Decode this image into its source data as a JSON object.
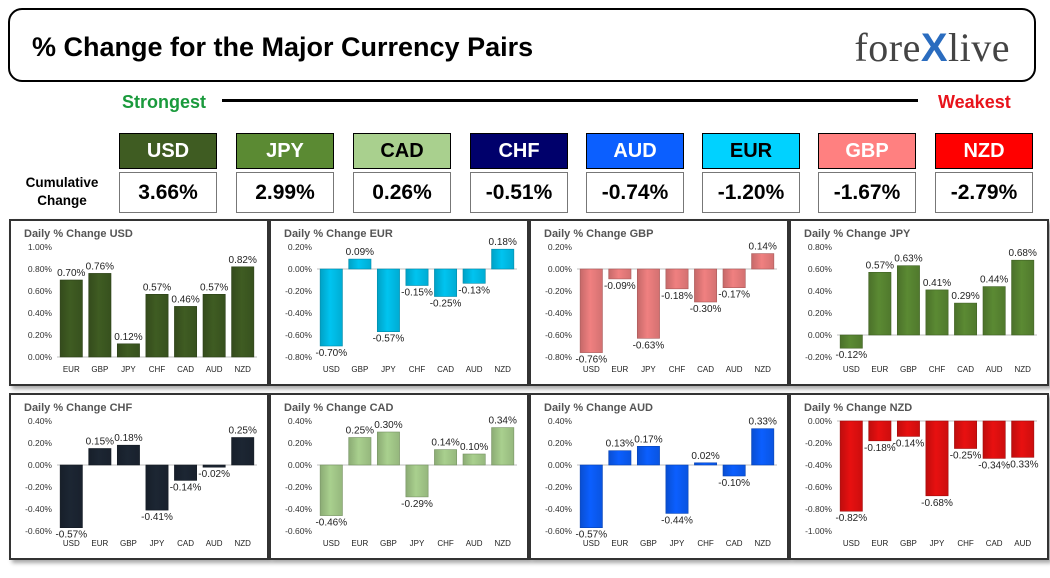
{
  "header": {
    "title": "% Change for the Major Currency Pairs",
    "brand_left": "fore",
    "brand_x": "X",
    "brand_right": "live"
  },
  "scale": {
    "strongest": "Strongest",
    "weakest": "Weakest"
  },
  "cumulative": {
    "label_line1": "Cumulative",
    "label_line2": "Change",
    "items": [
      {
        "code": "USD",
        "value": "3.66%",
        "bg": "#3f5c22",
        "fg": "#ffffff"
      },
      {
        "code": "JPY",
        "value": "2.99%",
        "bg": "#5b8a33",
        "fg": "#ffffff"
      },
      {
        "code": "CAD",
        "value": "0.26%",
        "bg": "#a9d08e",
        "fg": "#000000"
      },
      {
        "code": "CHF",
        "value": "-0.51%",
        "bg": "#00006b",
        "fg": "#ffffff"
      },
      {
        "code": "AUD",
        "value": "-0.74%",
        "bg": "#0b5fff",
        "fg": "#ffffff"
      },
      {
        "code": "EUR",
        "value": "-1.20%",
        "bg": "#00d2ff",
        "fg": "#000000"
      },
      {
        "code": "GBP",
        "value": "-1.67%",
        "bg": "#ff8080",
        "fg": "#ffffff"
      },
      {
        "code": "NZD",
        "value": "-2.79%",
        "bg": "#ff0000",
        "fg": "#ffffff"
      }
    ]
  },
  "chart_data": [
    {
      "type": "bar",
      "title": "Daily % Change USD",
      "color": "#3f5c22",
      "categories": [
        "EUR",
        "GBP",
        "JPY",
        "CHF",
        "CAD",
        "AUD",
        "NZD"
      ],
      "values": [
        0.7,
        0.76,
        0.12,
        0.57,
        0.46,
        0.57,
        0.82
      ],
      "labels": [
        "0.70%",
        "0.76%",
        "0.12%",
        "0.57%",
        "0.46%",
        "0.57%",
        "0.82%"
      ],
      "ticks": [
        "0.00%",
        "0.20%",
        "0.40%",
        "0.60%",
        "0.80%",
        "1.00%"
      ],
      "ylim": [
        0,
        1.0
      ]
    },
    {
      "type": "bar",
      "title": "Daily % Change EUR",
      "color": "#00c4f0",
      "categories": [
        "USD",
        "GBP",
        "JPY",
        "CHF",
        "CAD",
        "AUD",
        "NZD"
      ],
      "values": [
        -0.7,
        0.09,
        -0.57,
        -0.15,
        -0.25,
        -0.13,
        0.18
      ],
      "labels": [
        "-0.70%",
        "0.09%",
        "-0.57%",
        "-0.15%",
        "-0.25%",
        "-0.13%",
        "0.18%"
      ],
      "ticks": [
        "-0.80%",
        "-0.60%",
        "-0.40%",
        "-0.20%",
        "0.00%",
        "0.20%"
      ],
      "ylim": [
        -0.8,
        0.2
      ]
    },
    {
      "type": "bar",
      "title": "Daily % Change GBP",
      "color": "#f08080",
      "categories": [
        "USD",
        "EUR",
        "JPY",
        "CHF",
        "CAD",
        "AUD",
        "NZD"
      ],
      "values": [
        -0.76,
        -0.09,
        -0.63,
        -0.18,
        -0.3,
        -0.17,
        0.14
      ],
      "labels": [
        "-0.76%",
        "-0.09%",
        "-0.63%",
        "-0.18%",
        "-0.30%",
        "-0.17%",
        "0.14%"
      ],
      "ticks": [
        "-0.80%",
        "-0.60%",
        "-0.40%",
        "-0.20%",
        "0.00%",
        "0.20%"
      ],
      "ylim": [
        -0.8,
        0.2
      ]
    },
    {
      "type": "bar",
      "title": "Daily % Change JPY",
      "color": "#5b8a33",
      "categories": [
        "USD",
        "EUR",
        "GBP",
        "CHF",
        "CAD",
        "AUD",
        "NZD"
      ],
      "values": [
        -0.12,
        0.57,
        0.63,
        0.41,
        0.29,
        0.44,
        0.68
      ],
      "labels": [
        "-0.12%",
        "0.57%",
        "0.63%",
        "0.41%",
        "0.29%",
        "0.44%",
        "0.68%"
      ],
      "ticks": [
        "-0.20%",
        "0.00%",
        "0.20%",
        "0.40%",
        "0.60%",
        "0.80%"
      ],
      "ylim": [
        -0.2,
        0.8
      ]
    },
    {
      "type": "bar",
      "title": "Daily % Change CHF",
      "color": "#1c2633",
      "categories": [
        "USD",
        "EUR",
        "GBP",
        "JPY",
        "CAD",
        "AUD",
        "NZD"
      ],
      "values": [
        -0.57,
        0.15,
        0.18,
        -0.41,
        -0.14,
        -0.02,
        0.25
      ],
      "labels": [
        "-0.57%",
        "0.15%",
        "0.18%",
        "-0.41%",
        "-0.14%",
        "-0.02%",
        "0.25%"
      ],
      "ticks": [
        "-0.60%",
        "-0.40%",
        "-0.20%",
        "0.00%",
        "0.20%",
        "0.40%"
      ],
      "ylim": [
        -0.6,
        0.4
      ]
    },
    {
      "type": "bar",
      "title": "Daily % Change CAD",
      "color": "#a9d08e",
      "categories": [
        "USD",
        "EUR",
        "GBP",
        "JPY",
        "CHF",
        "AUD",
        "NZD"
      ],
      "values": [
        -0.46,
        0.25,
        0.3,
        -0.29,
        0.14,
        0.1,
        0.34
      ],
      "labels": [
        "-0.46%",
        "0.25%",
        "0.30%",
        "-0.29%",
        "0.14%",
        "0.10%",
        "0.34%"
      ],
      "ticks": [
        "-0.60%",
        "-0.40%",
        "-0.20%",
        "0.00%",
        "0.20%",
        "0.40%"
      ],
      "ylim": [
        -0.6,
        0.4
      ]
    },
    {
      "type": "bar",
      "title": "Daily % Change AUD",
      "color": "#0b5fff",
      "categories": [
        "USD",
        "EUR",
        "GBP",
        "JPY",
        "CHF",
        "CAD",
        "NZD"
      ],
      "values": [
        -0.57,
        0.13,
        0.17,
        -0.44,
        0.02,
        -0.1,
        0.33
      ],
      "labels": [
        "-0.57%",
        "0.13%",
        "0.17%",
        "-0.44%",
        "0.02%",
        "-0.10%",
        "0.33%"
      ],
      "ticks": [
        "-0.60%",
        "-0.40%",
        "-0.20%",
        "0.00%",
        "0.20%",
        "0.40%"
      ],
      "ylim": [
        -0.6,
        0.4
      ]
    },
    {
      "type": "bar",
      "title": "Daily % Change NZD",
      "color": "#e81010",
      "categories": [
        "USD",
        "EUR",
        "GBP",
        "JPY",
        "CHF",
        "CAD",
        "AUD"
      ],
      "values": [
        -0.82,
        -0.18,
        -0.14,
        -0.68,
        -0.25,
        -0.34,
        -0.33
      ],
      "labels": [
        "-0.82%",
        "-0.18%",
        "-0.14%",
        "-0.68%",
        "-0.25%",
        "-0.34%",
        "-0.33%"
      ],
      "ticks": [
        "-1.00%",
        "-0.80%",
        "-0.60%",
        "-0.40%",
        "-0.20%",
        "0.00%"
      ],
      "ylim": [
        -1.0,
        0.0
      ]
    }
  ]
}
